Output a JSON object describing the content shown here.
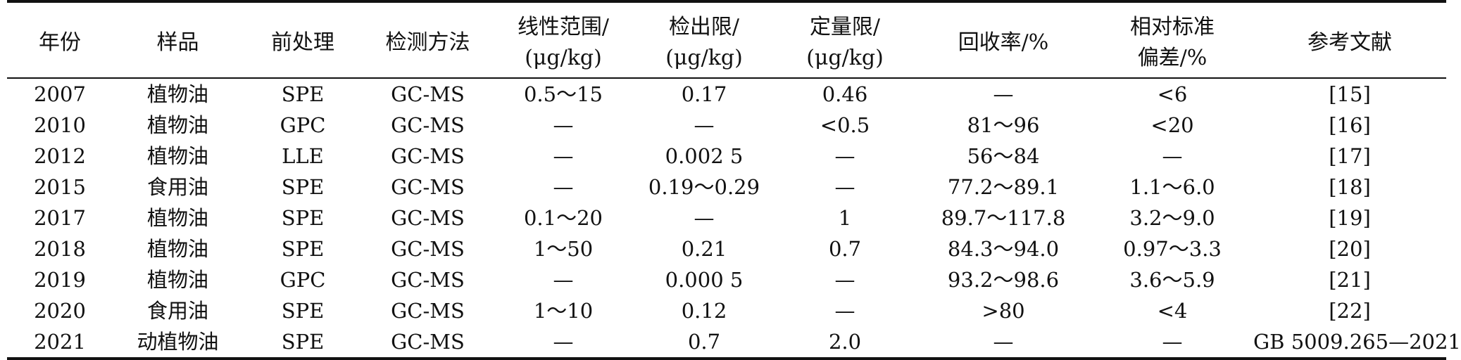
{
  "table": {
    "headers": [
      {
        "lines": [
          "年份"
        ]
      },
      {
        "lines": [
          "样品"
        ]
      },
      {
        "lines": [
          "前处理"
        ]
      },
      {
        "lines": [
          "检测方法"
        ]
      },
      {
        "lines": [
          "线性范围/",
          "(μg/kg)"
        ]
      },
      {
        "lines": [
          "检出限/",
          "(μg/kg)"
        ]
      },
      {
        "lines": [
          "定量限/",
          "(μg/kg)"
        ]
      },
      {
        "lines": [
          "回收率/%"
        ]
      },
      {
        "lines": [
          "相对标准",
          "偏差/%"
        ]
      },
      {
        "lines": [
          "参考文献"
        ]
      }
    ],
    "rows": [
      [
        "2007",
        "植物油",
        "SPE",
        "GC-MS",
        "0.5～15",
        "0.17",
        "0.46",
        "—",
        "<6",
        "[15]"
      ],
      [
        "2010",
        "植物油",
        "GPC",
        "GC-MS",
        "—",
        "—",
        "<0.5",
        "81～96",
        "<20",
        "[16]"
      ],
      [
        "2012",
        "植物油",
        "LLE",
        "GC-MS",
        "—",
        "0.002 5",
        "—",
        "56～84",
        "—",
        "[17]"
      ],
      [
        "2015",
        "食用油",
        "SPE",
        "GC-MS",
        "—",
        "0.19～0.29",
        "—",
        "77.2～89.1",
        "1.1～6.0",
        "[18]"
      ],
      [
        "2017",
        "植物油",
        "SPE",
        "GC-MS",
        "0.1～20",
        "—",
        "1",
        "89.7～117.8",
        "3.2～9.0",
        "[19]"
      ],
      [
        "2018",
        "植物油",
        "SPE",
        "GC-MS",
        "1～50",
        "0.21",
        "0.7",
        "84.3～94.0",
        "0.97～3.3",
        "[20]"
      ],
      [
        "2019",
        "植物油",
        "GPC",
        "GC-MS",
        "—",
        "0.000 5",
        "—",
        "93.2～98.6",
        "3.6～5.9",
        "[21]"
      ],
      [
        "2020",
        "食用油",
        "SPE",
        "GC-MS",
        "1～10",
        "0.12",
        "—",
        ">80",
        "<4",
        "[22]"
      ],
      [
        "2021",
        "动植物油",
        "SPE",
        "GC-MS",
        "—",
        "0.7",
        "2.0",
        "—",
        "—",
        "GB 5009.265—2021"
      ]
    ]
  }
}
